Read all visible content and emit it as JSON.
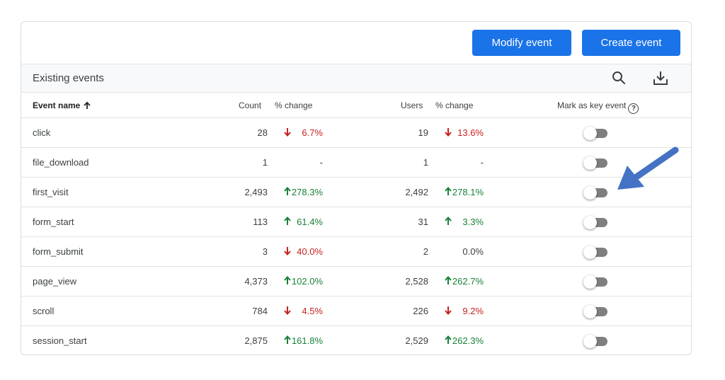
{
  "actions": {
    "modify_label": "Modify event",
    "create_label": "Create event"
  },
  "section": {
    "title": "Existing events",
    "search_icon": "search-icon",
    "download_icon": "download-icon"
  },
  "columns": {
    "event_name": "Event name",
    "count": "Count",
    "count_change": "% change",
    "users": "Users",
    "users_change": "% change",
    "mark_key": "Mark as key event",
    "help_glyph": "?"
  },
  "events": [
    {
      "name": "click",
      "count": "28",
      "count_change": "6.7%",
      "count_dir": "down",
      "users": "19",
      "users_change": "13.6%",
      "users_dir": "down",
      "key_event": false
    },
    {
      "name": "file_download",
      "count": "1",
      "count_change": "-",
      "count_dir": "none",
      "users": "1",
      "users_change": "-",
      "users_dir": "none",
      "key_event": false
    },
    {
      "name": "first_visit",
      "count": "2,493",
      "count_change": "278.3%",
      "count_dir": "up",
      "users": "2,492",
      "users_change": "278.1%",
      "users_dir": "up",
      "key_event": false
    },
    {
      "name": "form_start",
      "count": "113",
      "count_change": "61.4%",
      "count_dir": "up",
      "users": "31",
      "users_change": "3.3%",
      "users_dir": "up",
      "key_event": false
    },
    {
      "name": "form_submit",
      "count": "3",
      "count_change": "40.0%",
      "count_dir": "down",
      "users": "2",
      "users_change": "0.0%",
      "users_dir": "none",
      "key_event": false
    },
    {
      "name": "page_view",
      "count": "4,373",
      "count_change": "102.0%",
      "count_dir": "up",
      "users": "2,528",
      "users_change": "262.7%",
      "users_dir": "up",
      "key_event": false
    },
    {
      "name": "scroll",
      "count": "784",
      "count_change": "4.5%",
      "count_dir": "down",
      "users": "226",
      "users_change": "9.2%",
      "users_dir": "down",
      "key_event": false
    },
    {
      "name": "session_start",
      "count": "2,875",
      "count_change": "161.8%",
      "count_dir": "up",
      "users": "2,529",
      "users_change": "262.3%",
      "users_dir": "up",
      "key_event": false
    }
  ],
  "colors": {
    "primary": "#1a73e8",
    "up": "#188038",
    "down": "#c5221f",
    "annotation_arrow": "#4472c4"
  }
}
